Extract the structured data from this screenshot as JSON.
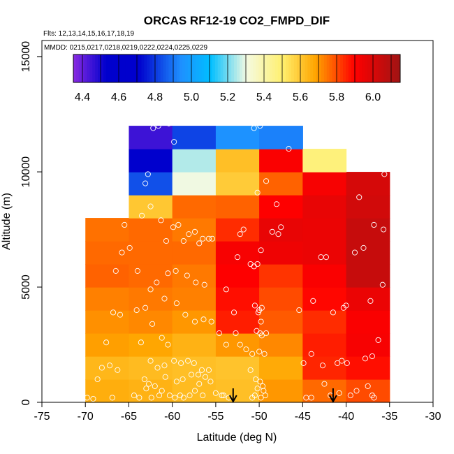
{
  "chart_data": {
    "type": "heatmap",
    "title": "ORCAS RF12-19 CO2_FMPD_DIF",
    "annotations": {
      "flights": "Flts: 12,13,14,15,16,17,18,19",
      "dates": "MMDD: 0215,0217,0218,0219,0222,0224,0225,0229"
    },
    "xlabel": "Latitude (deg N)",
    "ylabel": "Altitude (m)",
    "xlim": [
      -75,
      -30
    ],
    "ylim": [
      0,
      15000
    ],
    "x_ticks": [
      "-75",
      "-70",
      "-65",
      "-60",
      "-55",
      "-50",
      "-45",
      "-40",
      "-35",
      "-30"
    ],
    "y_ticks": [
      "0",
      "5000",
      "10000",
      "15000"
    ],
    "colorbar": {
      "min": 4.35,
      "max": 6.15,
      "tick_values": [
        4.4,
        4.6,
        4.8,
        5.0,
        5.2,
        5.4,
        5.6,
        5.8,
        6.0
      ],
      "tick_labels": [
        "4.4",
        "4.6",
        "4.8",
        "5.0",
        "5.2",
        "5.4",
        "5.6",
        "5.8",
        "6.0"
      ]
    },
    "lat_bin_edges": [
      -70,
      -65,
      -60,
      -55,
      -50,
      -45,
      -40,
      -35
    ],
    "alt_bin_edges": [
      0,
      1000,
      2000,
      3000,
      4000,
      5000,
      6000,
      7000,
      8000,
      9000,
      10000,
      11000,
      12000
    ],
    "cells": [
      [
        5.66,
        5.65,
        5.63,
        5.62,
        5.7,
        5.76,
        5.8
      ],
      [
        5.64,
        5.63,
        5.62,
        5.61,
        5.67,
        5.85,
        5.88
      ],
      [
        5.69,
        5.68,
        5.65,
        5.7,
        5.72,
        5.86,
        5.92
      ],
      [
        5.71,
        5.72,
        5.7,
        5.86,
        5.78,
        5.84,
        5.91
      ],
      [
        5.73,
        5.74,
        5.73,
        5.88,
        5.8,
        5.89,
        5.95
      ],
      [
        5.77,
        5.76,
        5.74,
        5.9,
        5.83,
        5.91,
        6.05
      ],
      [
        5.76,
        5.76,
        5.76,
        5.92,
        5.94,
        5.95,
        6.05
      ],
      [
        5.75,
        5.76,
        5.74,
        5.84,
        5.96,
        5.95,
        6.05
      ],
      [
        null,
        5.6,
        5.76,
        5.77,
        5.9,
        5.96,
        6.02
      ],
      [
        null,
        4.84,
        5.3,
        5.59,
        5.77,
        5.92,
        6.01
      ],
      [
        null,
        4.62,
        5.25,
        5.62,
        5.91,
        5.48,
        null
      ],
      [
        null,
        4.45,
        4.82,
        4.95,
        4.92,
        null,
        null
      ]
    ],
    "points": [
      [
        -69.8,
        200
      ],
      [
        -69.1,
        150
      ],
      [
        -68.6,
        1000
      ],
      [
        -68.1,
        1500
      ],
      [
        -67.6,
        2600
      ],
      [
        -67.2,
        1600
      ],
      [
        -66.8,
        3900
      ],
      [
        -66.5,
        5700
      ],
      [
        -65.8,
        6500
      ],
      [
        -65.5,
        7700
      ],
      [
        -64.9,
        6700
      ],
      [
        -66.0,
        3800
      ],
      [
        -66.3,
        1400
      ],
      [
        -66.9,
        200
      ],
      [
        -64.0,
        5700
      ],
      [
        -63.5,
        8100
      ],
      [
        -63.1,
        9500
      ],
      [
        -62.5,
        8500
      ],
      [
        -62.8,
        9900
      ],
      [
        -62.2,
        11900
      ],
      [
        -61.6,
        12000
      ],
      [
        -60.4,
        12100
      ],
      [
        -59.8,
        11300
      ],
      [
        -61.3,
        7900
      ],
      [
        -60.7,
        7000
      ],
      [
        -59.9,
        7600
      ],
      [
        -59.3,
        7700
      ],
      [
        -58.7,
        7000
      ],
      [
        -58.1,
        7300
      ],
      [
        -57.4,
        7400
      ],
      [
        -56.9,
        6900
      ],
      [
        -56.5,
        7100
      ],
      [
        -55.8,
        7100
      ],
      [
        -55.4,
        7100
      ],
      [
        -62.5,
        4900
      ],
      [
        -61.8,
        5200
      ],
      [
        -60.5,
        5600
      ],
      [
        -59.6,
        5700
      ],
      [
        -58.3,
        5500
      ],
      [
        -57.3,
        5200
      ],
      [
        -56.3,
        5100
      ],
      [
        -60.9,
        4500
      ],
      [
        -59.5,
        4300
      ],
      [
        -58.5,
        3800
      ],
      [
        -57.4,
        3500
      ],
      [
        -56.4,
        3600
      ],
      [
        -55.5,
        3500
      ],
      [
        -54.6,
        3000
      ],
      [
        -53.8,
        2500
      ],
      [
        -52.7,
        3000
      ],
      [
        -64.1,
        4000
      ],
      [
        -63.1,
        4100
      ],
      [
        -62.3,
        3400
      ],
      [
        -61.2,
        2800
      ],
      [
        -60.5,
        2500
      ],
      [
        -63.6,
        2600
      ],
      [
        -62.5,
        1800
      ],
      [
        -61.7,
        1500
      ],
      [
        -60.9,
        1600
      ],
      [
        -59.8,
        1800
      ],
      [
        -59.0,
        1700
      ],
      [
        -58.2,
        1800
      ],
      [
        -57.5,
        1700
      ],
      [
        -56.6,
        1400
      ],
      [
        -55.8,
        1400
      ],
      [
        -63.2,
        1000
      ],
      [
        -62.7,
        800
      ],
      [
        -62.0,
        700
      ],
      [
        -61.2,
        500
      ],
      [
        -60.3,
        300
      ],
      [
        -59.7,
        200
      ],
      [
        -59.1,
        300
      ],
      [
        -58.7,
        200
      ],
      [
        -58.0,
        300
      ],
      [
        -57.4,
        500
      ],
      [
        -56.9,
        800
      ],
      [
        -56.2,
        1100
      ],
      [
        -55.6,
        900
      ],
      [
        -55.0,
        400
      ],
      [
        -54.3,
        300
      ],
      [
        -53.5,
        200
      ],
      [
        -64.4,
        300
      ],
      [
        -63.8,
        200
      ],
      [
        -63.0,
        600
      ],
      [
        -62.4,
        200
      ],
      [
        -61.5,
        300
      ],
      [
        -60.8,
        1100
      ],
      [
        -59.5,
        900
      ],
      [
        -58.8,
        1000
      ],
      [
        -57.8,
        1200
      ],
      [
        -57.0,
        1200
      ],
      [
        -56.5,
        300
      ],
      [
        -54.1,
        300
      ],
      [
        -52.5,
        6300
      ],
      [
        -52.2,
        7300
      ],
      [
        -51.8,
        7500
      ],
      [
        -51.0,
        6000
      ],
      [
        -50.6,
        5900
      ],
      [
        -50.2,
        6000
      ],
      [
        -49.8,
        6600
      ],
      [
        -48.5,
        7400
      ],
      [
        -47.5,
        7600
      ],
      [
        -47.8,
        7300
      ],
      [
        -50.2,
        9100
      ],
      [
        -49.2,
        9600
      ],
      [
        -48.0,
        8600
      ],
      [
        -46.6,
        11000
      ],
      [
        -50.6,
        11900
      ],
      [
        -49.9,
        12000
      ],
      [
        -53.8,
        4900
      ],
      [
        -52.9,
        3900
      ],
      [
        -52.2,
        2500
      ],
      [
        -51.5,
        2300
      ],
      [
        -50.8,
        2100
      ],
      [
        -50.0,
        2200
      ],
      [
        -51.0,
        1400
      ],
      [
        -50.4,
        1000
      ],
      [
        -49.9,
        900
      ],
      [
        -49.6,
        700
      ],
      [
        -50.2,
        600
      ],
      [
        -49.5,
        500
      ],
      [
        -50.5,
        300
      ],
      [
        -49.8,
        200
      ],
      [
        -49.3,
        300
      ],
      [
        -50.8,
        200
      ],
      [
        -50.5,
        4200
      ],
      [
        -49.4,
        2100
      ],
      [
        -49.9,
        3000
      ],
      [
        -49.7,
        2900
      ],
      [
        -50.3,
        3100
      ],
      [
        -50.1,
        3900
      ],
      [
        -49.8,
        3500
      ],
      [
        -49.2,
        3000
      ],
      [
        -50.0,
        4000
      ],
      [
        -49.7,
        4100
      ],
      [
        -45.4,
        4000
      ],
      [
        -43.8,
        4400
      ],
      [
        -42.9,
        6300
      ],
      [
        -42.3,
        6300
      ],
      [
        -41.5,
        3900
      ],
      [
        -40.0,
        4200
      ],
      [
        -39.0,
        6500
      ],
      [
        -38.0,
        6700
      ],
      [
        -36.8,
        7700
      ],
      [
        -38.5,
        8900
      ],
      [
        -35.6,
        9900
      ],
      [
        -35.7,
        7500
      ],
      [
        -35.8,
        5100
      ],
      [
        -36.3,
        2700
      ],
      [
        -37.0,
        2000
      ],
      [
        -37.8,
        1900
      ],
      [
        -44.9,
        1700
      ],
      [
        -44.0,
        2100
      ],
      [
        -42.7,
        1600
      ],
      [
        -41.0,
        1700
      ],
      [
        -40.5,
        1800
      ],
      [
        -39.9,
        1700
      ],
      [
        -40.8,
        400
      ],
      [
        -39.5,
        300
      ],
      [
        -38.8,
        500
      ],
      [
        -37.5,
        700
      ],
      [
        -37.0,
        300
      ],
      [
        -36.8,
        200
      ],
      [
        -44.6,
        200
      ],
      [
        -44.0,
        200
      ],
      [
        -41.8,
        300
      ],
      [
        -42.5,
        800
      ],
      [
        -40.3,
        4100
      ],
      [
        -37.2,
        4400
      ]
    ],
    "arrows_at_latitude": [
      -53,
      -41.5
    ]
  }
}
